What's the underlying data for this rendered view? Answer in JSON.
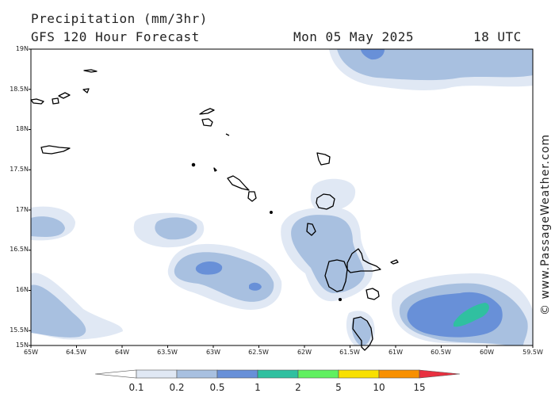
{
  "header": {
    "title": "Precipitation (mm/3hr)",
    "subtitle": "GFS 120 Hour Forecast",
    "date": "Mon 05 May 2025",
    "time": "18 UTC"
  },
  "credit": "© www.PassageWeather.com",
  "axes": {
    "lat_labels": [
      "19N",
      "18.5N",
      "18N",
      "17.5N",
      "17N",
      "16.5N",
      "16N",
      "15.5N",
      "15N"
    ],
    "lon_labels": [
      "65W",
      "64.5W",
      "64W",
      "63.5W",
      "63W",
      "62.5W",
      "62W",
      "61.5W",
      "61W",
      "60.5W",
      "60W",
      "59.5W"
    ]
  },
  "colorbar": {
    "labels": [
      "0.1",
      "0.2",
      "0.5",
      "1",
      "2",
      "5",
      "10",
      "15"
    ],
    "colors": [
      "#ffffff",
      "#e0e8f4",
      "#a8c0e0",
      "#6890d8",
      "#30c0a0",
      "#60f060",
      "#f8e000",
      "#f89000",
      "#e83040"
    ]
  },
  "colors": {
    "light": "#e0e8f4",
    "medium": "#a8c0e0",
    "dark": "#6890d8",
    "green": "#30c0a0"
  }
}
